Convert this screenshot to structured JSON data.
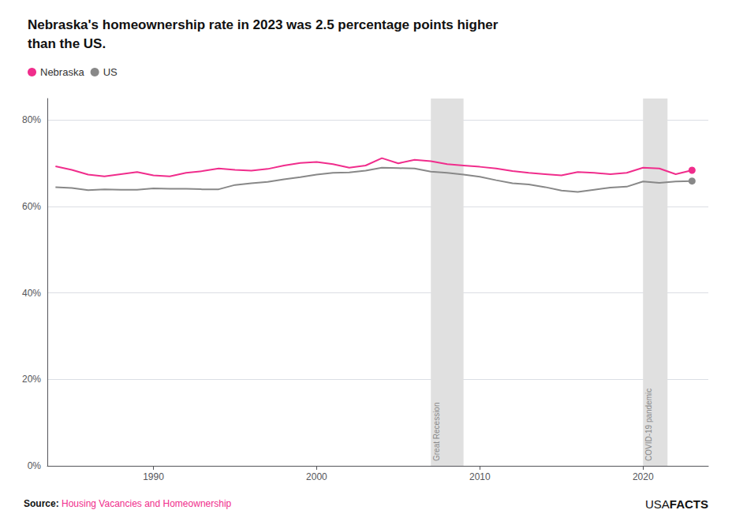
{
  "chart_data": {
    "type": "line",
    "title": "Nebraska's homeownership rate in 2023 was 2.5 percentage points higher\nthan the US.",
    "x": [
      1984,
      1985,
      1986,
      1987,
      1988,
      1989,
      1990,
      1991,
      1992,
      1993,
      1994,
      1995,
      1996,
      1997,
      1998,
      1999,
      2000,
      2001,
      2002,
      2003,
      2004,
      2005,
      2006,
      2007,
      2008,
      2009,
      2010,
      2011,
      2012,
      2013,
      2014,
      2015,
      2016,
      2017,
      2018,
      2019,
      2020,
      2021,
      2022,
      2023
    ],
    "series": [
      {
        "name": "Nebraska",
        "color": "#F02D8C",
        "values": [
          69.3,
          68.5,
          67.4,
          67.0,
          67.5,
          68.0,
          67.2,
          67.0,
          67.8,
          68.2,
          68.8,
          68.5,
          68.3,
          68.7,
          69.5,
          70.1,
          70.3,
          69.8,
          69.0,
          69.5,
          71.2,
          70.0,
          70.8,
          70.5,
          69.8,
          69.5,
          69.2,
          68.8,
          68.2,
          67.8,
          67.5,
          67.2,
          68.0,
          67.8,
          67.5,
          67.8,
          69.0,
          68.8,
          67.5,
          68.4
        ]
      },
      {
        "name": "US",
        "color": "#888888",
        "values": [
          64.5,
          64.3,
          63.8,
          64.0,
          63.9,
          63.9,
          64.2,
          64.1,
          64.1,
          64.0,
          64.0,
          65.0,
          65.4,
          65.7,
          66.3,
          66.8,
          67.4,
          67.8,
          67.9,
          68.3,
          69.0,
          68.9,
          68.8,
          68.1,
          67.8,
          67.4,
          66.9,
          66.1,
          65.4,
          65.1,
          64.5,
          63.7,
          63.4,
          63.9,
          64.4,
          64.6,
          65.8,
          65.5,
          65.8,
          65.9
        ]
      }
    ],
    "xlim": [
      1983.5,
      2024
    ],
    "xticks": [
      1990,
      2000,
      2010,
      2020
    ],
    "ylim": [
      0,
      85
    ],
    "yticks": [
      {
        "value": 0,
        "label": "0%"
      },
      {
        "value": 20,
        "label": "20%"
      },
      {
        "value": 40,
        "label": "40%"
      },
      {
        "value": 60,
        "label": "60%"
      },
      {
        "value": 80,
        "label": "80%"
      }
    ],
    "grid": true,
    "legend": "top-left",
    "annotations": [
      {
        "text": "Great Recession",
        "x_start": 2007,
        "x_end": 2009,
        "color": "#e0e0e0"
      },
      {
        "text": "COVID-19 pandemic",
        "x_start": 2020,
        "x_end": 2021.5,
        "color": "#e0e0e0"
      }
    ],
    "source": {
      "label": "Source:",
      "text": "Housing Vacancies and Homeownership",
      "color": "#F02D8C"
    },
    "logo": [
      "USA",
      "FACTS"
    ]
  }
}
